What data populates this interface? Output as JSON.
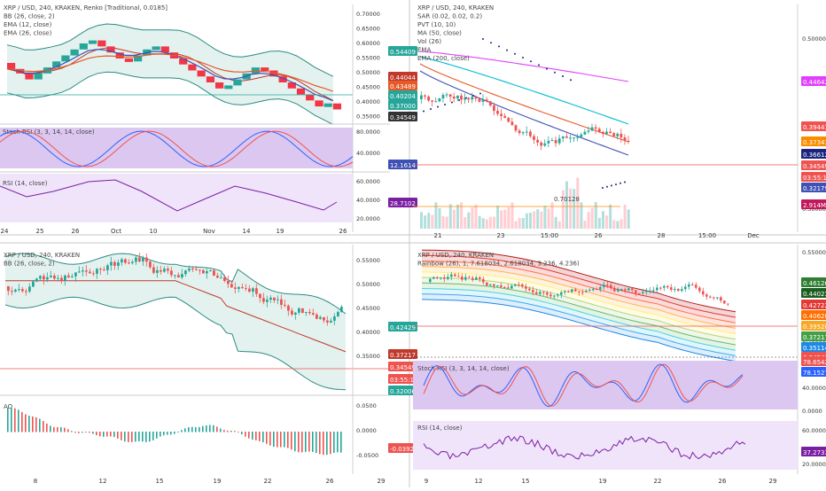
{
  "colors": {
    "up": "#26a69a",
    "down": "#ef5350",
    "renko_up": "#27a69a",
    "renko_down": "#f23645",
    "bb_fill": "#e3f2ef",
    "bb_line": "#2c8a83",
    "stoch_bg": "#dcc7f0",
    "rsi_bg": "#f0e4fb",
    "ema12": "#3f51b5",
    "ema26": "#e65a28",
    "rsi_line": "#7b1fa2",
    "priceline": "#ef5350",
    "sar": "#1a237e",
    "ma50": "#e040fb",
    "ema200": "#fb8c00"
  },
  "panels": [
    {
      "id": "tl",
      "legend": [
        "XRP / USD, 240, KRAKEN, Renko [Traditional, 0.0185]",
        "BB (26, close, 2)",
        "EMA (12, close)",
        "EMA (26, close)"
      ],
      "axis_ticks": [
        "0.70000",
        "0.65000",
        "0.60000",
        "0.55000",
        "0.50000",
        "0.45000",
        "0.40000",
        "0.35000"
      ],
      "price_badges": [
        {
          "text": "0.54409",
          "color": "#26a69a"
        },
        {
          "text": "0.44044",
          "color": "#c0392b"
        },
        {
          "text": "0.43489",
          "color": "#e65a28"
        },
        {
          "text": "0.40204",
          "color": "#26a69a"
        },
        {
          "text": "0.37000",
          "color": "#26a69a"
        },
        {
          "text": "0.34549",
          "color": "#333333"
        }
      ],
      "stoch_label": "Stoch RSI (3, 3, 14, 14, close)",
      "stoch_ticks": [
        "80.0000",
        "40.0000"
      ],
      "stoch_badge": "12.1614",
      "rsi_label": "RSI (14, close)",
      "rsi_ticks": [
        "60.0000",
        "40.0000",
        "20.0000"
      ],
      "rsi_badge": "28.7102",
      "time_labels": [
        "24",
        "25",
        "26",
        "Oct",
        "10",
        "Nov",
        "14",
        "19",
        "26"
      ]
    },
    {
      "id": "tr",
      "legend": [
        "XRP / USD, 240, KRAKEN",
        "SAR (0.02, 0.02, 0.2)",
        "PVT (10, 10)",
        "MA (50, close)",
        "Vol (26)",
        "EMA",
        "EMA (200, close)"
      ],
      "axis_ticks": [
        "0.50000",
        "0.40000",
        "0.30000"
      ],
      "price_badges": [
        {
          "text": "0.44642",
          "color": "#e040fb"
        },
        {
          "text": "0.39441",
          "color": "#ef5350"
        },
        {
          "text": "0.37341",
          "color": "#fb8c00"
        },
        {
          "text": "0.36612",
          "color": "#1a237e"
        },
        {
          "text": "0.34549",
          "color": "#ef5350"
        },
        {
          "text": "03:55:16",
          "color": "#ef5350"
        },
        {
          "text": "0.32179",
          "color": "#3f51b5"
        },
        {
          "text": "2.914M",
          "color": "#c2185b"
        }
      ],
      "volume_badge": "0.70128",
      "time_labels": [
        "21",
        "23",
        "15:00",
        "26",
        "28",
        "15:00",
        "Dec"
      ]
    },
    {
      "id": "bl",
      "legend": [
        "XRP / USD, 240, KRAKEN",
        "BB (26, close, 2)"
      ],
      "axis_ticks": [
        "0.55000",
        "0.50000",
        "0.45000",
        "0.40000",
        "0.35000"
      ],
      "price_badges": [
        {
          "text": "0.42429",
          "color": "#26a69a"
        },
        {
          "text": "0.37217",
          "color": "#c0392b"
        },
        {
          "text": "0.34549",
          "color": "#ef5350"
        },
        {
          "text": "03:55:16",
          "color": "#ef5350"
        },
        {
          "text": "0.32006",
          "color": "#26a69a"
        }
      ],
      "osc_label": "AO",
      "osc_ticks": [
        "0.0500",
        "0.0000",
        "-0.0500"
      ],
      "osc_badge": "-0.0392",
      "time_labels": [
        "8",
        "12",
        "15",
        "19",
        "22",
        "26",
        "29"
      ]
    },
    {
      "id": "br",
      "legend": [
        "XRP / USD, 240, KRAKEN",
        "Rainbow (26), 1, 7.618034, 2.618034, 3.236, 4.236)"
      ],
      "axis_ticks": [
        "0.55000",
        "0.50000",
        "0.45000",
        "0.40000"
      ],
      "price_badges": [
        {
          "text": "0.46126",
          "color": "#2e7d32"
        },
        {
          "text": "0.44023",
          "color": "#1b5e20"
        },
        {
          "text": "0.42722",
          "color": "#e53935"
        },
        {
          "text": "0.40620",
          "color": "#ff6f00"
        },
        {
          "text": "0.39520",
          "color": "#f9a825"
        },
        {
          "text": "0.37217",
          "color": "#43a047"
        },
        {
          "text": "0.35114",
          "color": "#1e88e5"
        },
        {
          "text": "0.34549",
          "color": "#ef5350"
        }
      ],
      "stoch_label": "Stoch RSI (3, 3, 14, 14, close)",
      "stoch_ticks": [
        "80.0000",
        "40.0000",
        "0.0000"
      ],
      "stoch_badges": [
        "78.6542",
        "78.1527"
      ],
      "rsi_label": "RSI (14, close)",
      "rsi_ticks": [
        "60.0000",
        "20.0000"
      ],
      "rsi_badge": "37.2733",
      "time_labels": [
        "9",
        "12",
        "15",
        "19",
        "22",
        "26",
        "29"
      ]
    }
  ],
  "chart_data": [
    {
      "type": "line",
      "panel": "top-left renko",
      "title": "XRP / USD, 240, KRAKEN, Renko [Traditional, 0.0185]",
      "series": [
        {
          "name": "Renko close",
          "values": [
            0.505,
            0.49,
            0.47,
            0.49,
            0.51,
            0.53,
            0.55,
            0.57,
            0.59,
            0.6,
            0.58,
            0.56,
            0.54,
            0.53,
            0.55,
            0.57,
            0.58,
            0.56,
            0.54,
            0.52,
            0.5,
            0.48,
            0.46,
            0.44,
            0.45,
            0.47,
            0.49,
            0.51,
            0.5,
            0.48,
            0.46,
            0.44,
            0.42,
            0.4,
            0.38,
            0.39,
            0.37
          ]
        }
      ],
      "ylim": [
        0.33,
        0.72
      ]
    },
    {
      "type": "line",
      "panel": "bottom-left AO",
      "series": [
        {
          "name": "AO",
          "values": [
            0.045,
            0.04,
            0.03,
            0.02,
            0.01,
            0.005,
            0.0,
            -0.003,
            -0.006,
            -0.01,
            -0.015,
            -0.02,
            -0.018,
            -0.012,
            -0.005,
            0.002,
            0.008,
            0.012,
            0.01,
            0.004,
            -0.002,
            -0.01,
            -0.02,
            -0.025,
            -0.03,
            -0.035,
            -0.038,
            -0.04,
            -0.042,
            -0.039
          ]
        }
      ],
      "ylim": [
        -0.06,
        0.06
      ]
    }
  ]
}
